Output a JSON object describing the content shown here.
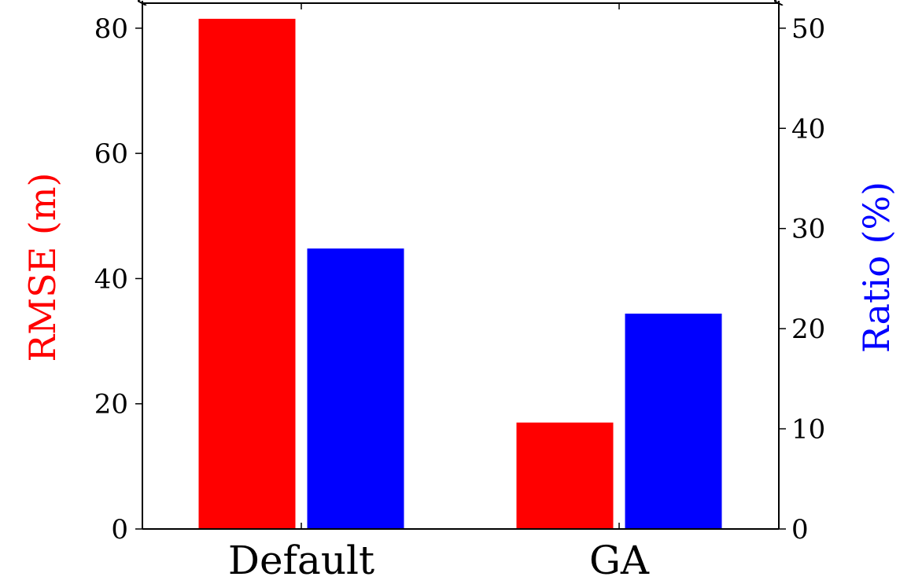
{
  "chart_data": {
    "type": "bar",
    "categories": [
      "Default",
      "GA"
    ],
    "series": [
      {
        "axis": "left",
        "color": "#ff0000",
        "values": [
          81.5,
          17.0
        ]
      },
      {
        "axis": "right",
        "color": "#0000ff",
        "values": [
          28.0,
          21.5
        ]
      }
    ],
    "y_left": {
      "label": "RMSE (m)",
      "color": "#ff0000",
      "range": [
        0,
        84
      ],
      "ticks": [
        0,
        20,
        40,
        60,
        80
      ]
    },
    "y_right": {
      "label": "Ratio (%)",
      "color": "#0000ff",
      "range": [
        0,
        52.5
      ],
      "ticks": [
        0,
        10,
        20,
        30,
        40,
        50
      ]
    },
    "grid": false,
    "legend": "none"
  }
}
